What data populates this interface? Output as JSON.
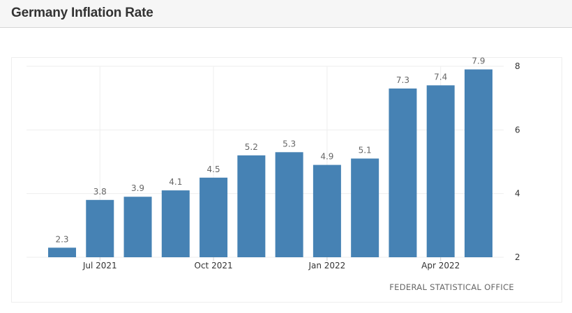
{
  "header": {
    "title": "Germany Inflation Rate"
  },
  "source": "FEDERAL STATISTICAL OFFICE",
  "colors": {
    "bar": "#4682b4",
    "grid": "#eeeeee",
    "header_bg": "#f6f6f6"
  },
  "chart_data": {
    "type": "bar",
    "title": "Germany Inflation Rate",
    "xlabel": "",
    "ylabel": "",
    "ylim": [
      2,
      8
    ],
    "yticks": [
      2,
      4,
      6,
      8
    ],
    "y_axis_side": "right",
    "x_tick_labels": [
      {
        "label": "Jul 2021",
        "index": 1
      },
      {
        "label": "Oct 2021",
        "index": 4
      },
      {
        "label": "Jan 2022",
        "index": 7
      },
      {
        "label": "Apr 2022",
        "index": 10
      }
    ],
    "values": [
      2.3,
      3.8,
      3.9,
      4.1,
      4.5,
      5.2,
      5.3,
      4.9,
      5.1,
      7.3,
      7.4,
      7.9
    ],
    "data_labels": [
      "2.3",
      "3.8",
      "3.9",
      "4.1",
      "4.5",
      "5.2",
      "5.3",
      "4.9",
      "5.1",
      "7.3",
      "7.4",
      "7.9"
    ],
    "grid": true,
    "source": "FEDERAL STATISTICAL OFFICE"
  }
}
